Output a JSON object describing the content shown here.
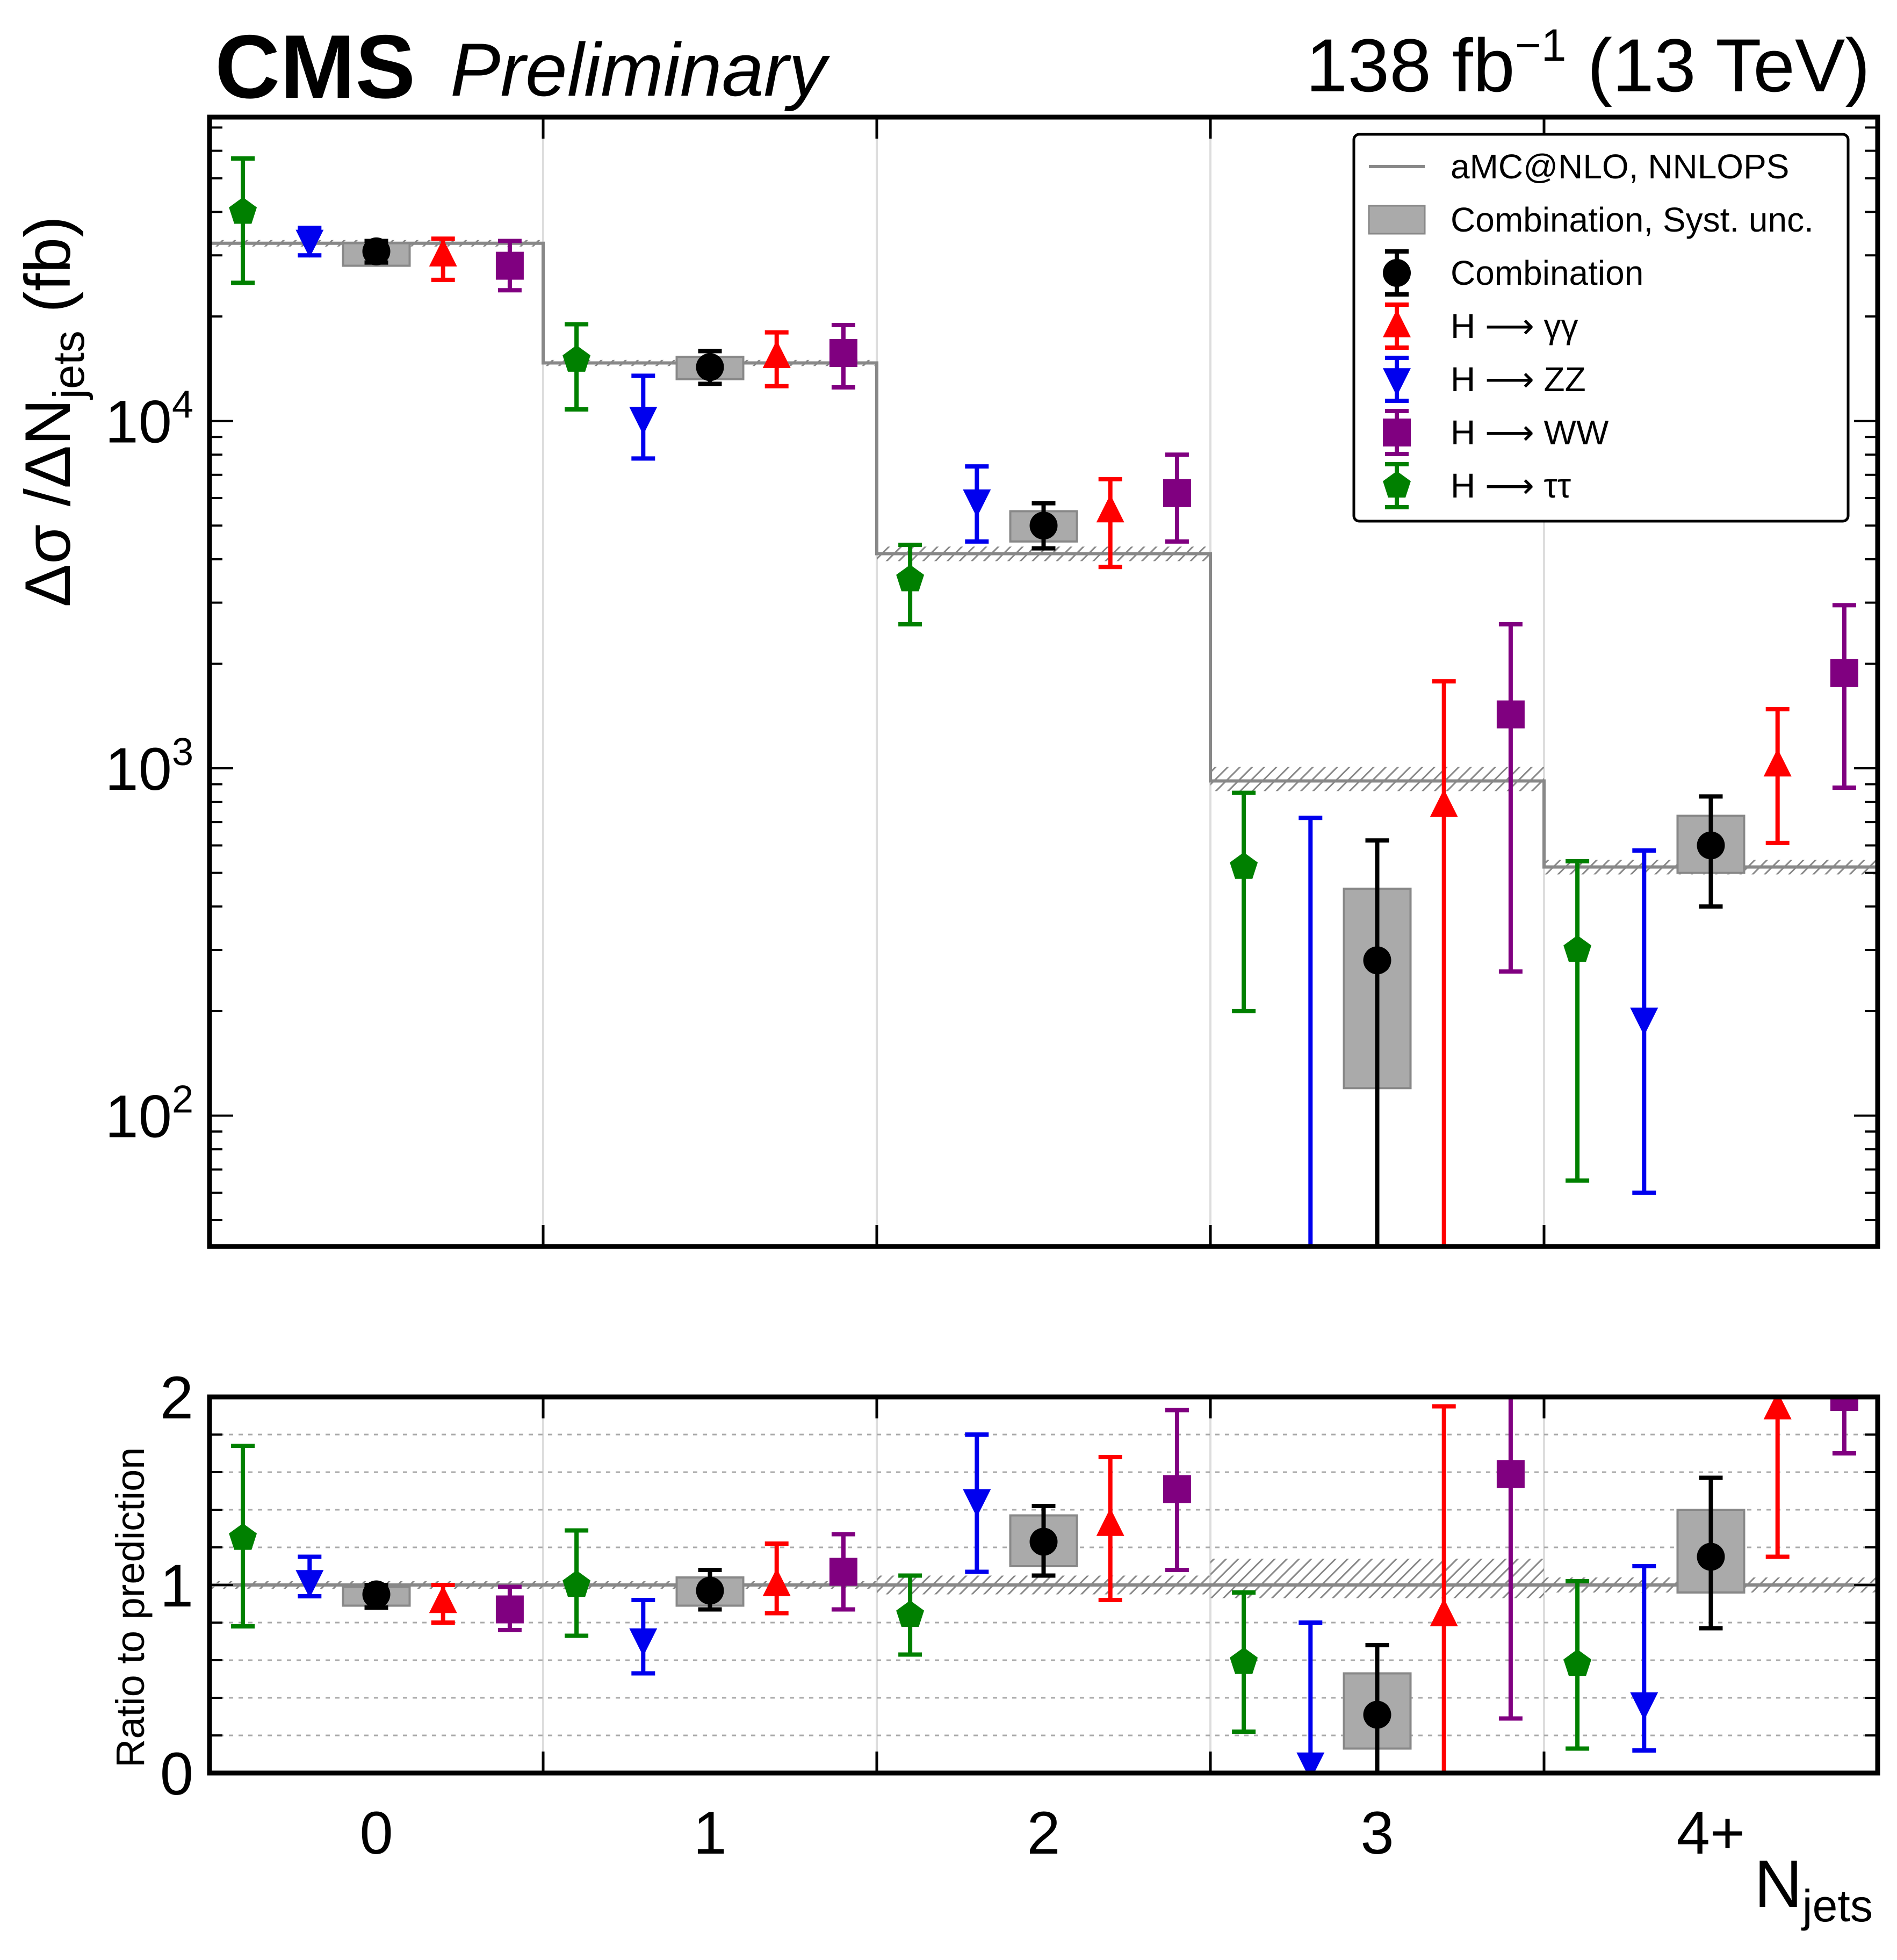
{
  "header": {
    "experiment": "CMS",
    "status": "Preliminary",
    "lumi_value": "138 fb",
    "lumi_exponent": "−1",
    "energy": "(13 TeV)"
  },
  "legend": {
    "prediction": "aMC@NLO, NNLOPS",
    "syst": "Combination, Syst. unc.",
    "combination": "Combination",
    "hgg": "H ⟶ γγ",
    "hzz": "H ⟶  ZZ",
    "hww": "H ⟶  WW",
    "htt": "H ⟶ ττ"
  },
  "labels": {
    "y_top_main": "Δσ /ΔN",
    "y_top_sub": "jets",
    "y_top_unit": " (fb)",
    "y_bottom": "Ratio to prediction",
    "x_main": "N",
    "x_sub": "jets"
  },
  "colors": {
    "combination": "#000000",
    "hgg": "#ff0000",
    "hzz": "#0000ee",
    "hww": "#800080",
    "htt": "#008000",
    "prediction": "#888888",
    "syst_fill": "#aaaaaa"
  },
  "chart_data": [
    {
      "type": "scatter",
      "panel": "main",
      "yscale": "log",
      "ylim": [
        42,
        75000
      ],
      "yticks": [
        "10^2",
        "10^3",
        "10^4"
      ],
      "categories": [
        "0",
        "1",
        "2",
        "3",
        "4+"
      ],
      "prediction": {
        "name": "aMC@NLO, NNLOPS",
        "values": [
          32500,
          14700,
          4150,
          920,
          520
        ],
        "unc_band": [
          [
            31800,
            33200
          ],
          [
            14400,
            15000
          ],
          [
            3950,
            4350
          ],
          [
            860,
            1010
          ],
          [
            495,
            545
          ]
        ]
      },
      "series": [
        {
          "name": "Combination",
          "key": "combination",
          "offset": 0,
          "marker": "circle",
          "values": [
            30800,
            14300,
            5000,
            280,
            600
          ],
          "err_low": [
            28600,
            12800,
            4300,
            40,
            400
          ],
          "err_high": [
            33000,
            15900,
            5800,
            620,
            830
          ],
          "syst_low": [
            28000,
            13200,
            4500,
            120,
            500
          ],
          "syst_high": [
            32500,
            15300,
            5500,
            450,
            730
          ]
        },
        {
          "name": "H ⟶ γγ",
          "key": "hgg",
          "offset": 0.2,
          "marker": "triangle-up",
          "values": [
            30000,
            15300,
            5500,
            780,
            1020
          ],
          "err_low": [
            25500,
            12600,
            3800,
            40,
            610
          ],
          "err_high": [
            33500,
            18000,
            6800,
            1780,
            1480
          ]
        },
        {
          "name": "H ⟶  ZZ",
          "key": "hzz",
          "offset": -0.2,
          "marker": "triangle-down",
          "values": [
            33000,
            10200,
            5900,
            42,
            190
          ],
          "err_low": [
            30000,
            7800,
            4500,
            40,
            60
          ],
          "err_high": [
            36000,
            13500,
            7400,
            720,
            580
          ]
        },
        {
          "name": "H ⟶  WW",
          "key": "hww",
          "offset": 0.4,
          "marker": "square",
          "values": [
            28000,
            15700,
            6200,
            1430,
            1880
          ],
          "err_low": [
            23800,
            12500,
            4500,
            260,
            880
          ],
          "err_high": [
            33000,
            18900,
            8000,
            2600,
            2950
          ]
        },
        {
          "name": "H ⟶ ττ",
          "key": "htt",
          "offset": -0.4,
          "marker": "pentagon",
          "values": [
            40000,
            15000,
            3500,
            520,
            300
          ],
          "err_low": [
            25000,
            10800,
            2600,
            200,
            65
          ],
          "err_high": [
            57000,
            19000,
            4400,
            850,
            540
          ]
        }
      ]
    },
    {
      "type": "scatter",
      "panel": "ratio",
      "yscale": "linear",
      "ylim": [
        0,
        2
      ],
      "yticks": [
        0,
        1,
        2
      ],
      "grid": "dotted every 0.2",
      "categories": [
        "0",
        "1",
        "2",
        "3",
        "4+"
      ],
      "prediction_band": [
        [
          0.98,
          1.02
        ],
        [
          0.98,
          1.02
        ],
        [
          0.95,
          1.05
        ],
        [
          0.93,
          1.14
        ],
        [
          0.96,
          1.04
        ]
      ],
      "series": [
        {
          "key": "combination",
          "offset": 0,
          "values": [
            0.95,
            0.97,
            1.23,
            0.31,
            1.15
          ],
          "err_low": [
            0.88,
            0.87,
            1.05,
            0,
            0.77
          ],
          "err_high": [
            1.0,
            1.08,
            1.42,
            0.68,
            1.57
          ],
          "syst_low": [
            0.89,
            0.89,
            1.1,
            0.13,
            0.96
          ],
          "syst_high": [
            0.99,
            1.04,
            1.37,
            0.53,
            1.4
          ]
        },
        {
          "key": "hgg",
          "offset": 0.2,
          "values": [
            0.91,
            1.0,
            1.32,
            0.84,
            1.94
          ],
          "err_low": [
            0.8,
            0.85,
            0.92,
            0,
            1.15
          ],
          "err_high": [
            1.0,
            1.22,
            1.68,
            1.95,
            2.0
          ]
        },
        {
          "key": "hzz",
          "offset": -0.2,
          "values": [
            1.02,
            0.71,
            1.45,
            0.05,
            0.37
          ],
          "err_low": [
            0.94,
            0.53,
            1.07,
            0,
            0.12
          ],
          "err_high": [
            1.15,
            0.92,
            1.8,
            0.8,
            1.1
          ]
        },
        {
          "key": "hww",
          "offset": 0.4,
          "values": [
            0.87,
            1.07,
            1.51,
            1.59,
            2.0
          ],
          "err_low": [
            0.76,
            0.87,
            1.08,
            0.29,
            1.7
          ],
          "err_high": [
            0.99,
            1.27,
            1.93,
            2.0,
            2.0
          ]
        },
        {
          "key": "htt",
          "offset": -0.4,
          "values": [
            1.25,
            1.0,
            0.84,
            0.59,
            0.58
          ],
          "err_low": [
            0.78,
            0.73,
            0.63,
            0.22,
            0.13
          ],
          "err_high": [
            1.74,
            1.29,
            1.05,
            0.96,
            1.02
          ]
        }
      ]
    }
  ]
}
